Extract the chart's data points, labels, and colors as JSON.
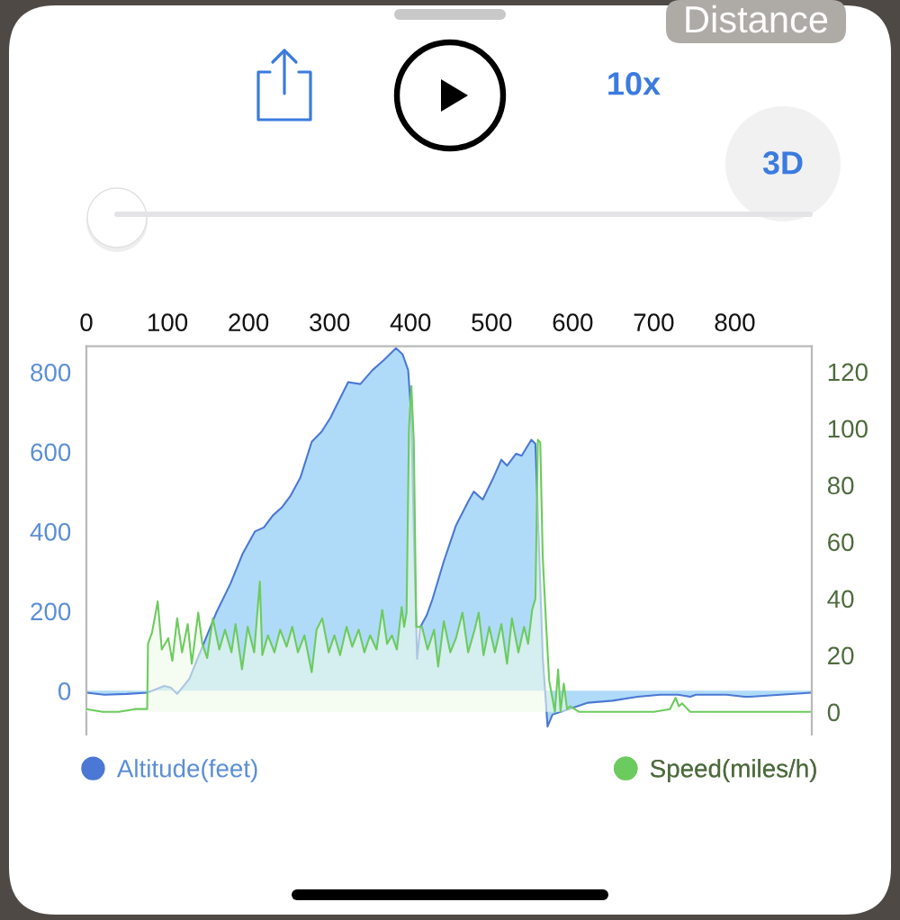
{
  "chart_data": {
    "type": "area",
    "annotations": [
      "Distance",
      "10x",
      "3D"
    ],
    "xlim": [
      0,
      895
    ],
    "xticks": [
      0,
      100,
      200,
      300,
      400,
      500,
      600,
      700,
      800
    ],
    "ylim": [
      -110,
      865
    ],
    "yticks": [
      0,
      200,
      400,
      600,
      800
    ],
    "y2lim": [
      -8,
      129
    ],
    "y2ticks": [
      0,
      20,
      40,
      60,
      80,
      100,
      120
    ],
    "legend": "bottom",
    "series": [
      {
        "name": "Altitude(feet)",
        "color": "#4a78d4",
        "x": [
          0,
          22,
          50,
          75,
          96,
          104,
          112,
          127,
          141,
          160,
          178,
          193,
          208,
          219,
          230,
          241,
          252,
          264,
          278,
          290,
          301,
          312,
          323,
          338,
          353,
          367,
          382,
          390,
          397,
          401,
          404,
          408,
          412,
          420,
          427,
          441,
          456,
          471,
          478,
          489,
          501,
          512,
          519,
          530,
          537,
          549,
          554,
          558,
          563,
          569,
          575,
          597,
          619,
          649,
          680,
          708,
          730,
          745,
          752,
          790,
          812,
          819,
          856,
          895
        ],
        "values": [
          -5,
          -10,
          -8,
          -5,
          12,
          8,
          -8,
          30,
          100,
          195,
          270,
          345,
          400,
          410,
          440,
          460,
          490,
          535,
          625,
          650,
          685,
          730,
          775,
          770,
          805,
          830,
          860,
          845,
          805,
          685,
          400,
          80,
          160,
          190,
          230,
          325,
          415,
          475,
          500,
          480,
          530,
          580,
          565,
          595,
          590,
          630,
          620,
          385,
          85,
          -90,
          -60,
          -45,
          -30,
          -25,
          -15,
          -10,
          -10,
          -15,
          -10,
          -10,
          -15,
          -15,
          -10,
          -5
        ]
      },
      {
        "name": "Speed(miles/h)",
        "color": "#6ccb5e",
        "axis": "y2",
        "x": [
          0,
          20,
          40,
          60,
          75,
          76,
          81,
          88,
          93,
          101,
          106,
          112,
          118,
          125,
          130,
          138,
          143,
          149,
          156,
          164,
          171,
          179,
          184,
          192,
          199,
          207,
          214,
          217,
          224,
          232,
          239,
          247,
          254,
          261,
          269,
          278,
          284,
          291,
          299,
          306,
          313,
          321,
          328,
          336,
          343,
          350,
          358,
          365,
          371,
          377,
          383,
          389,
          392,
          395,
          398,
          401,
          404,
          407,
          414,
          421,
          429,
          434,
          441,
          449,
          456,
          464,
          471,
          479,
          484,
          490,
          497,
          504,
          512,
          519,
          525,
          533,
          540,
          545,
          550,
          554,
          557,
          560,
          563,
          567,
          571,
          578,
          582,
          585,
          589,
          593,
          597,
          608,
          650,
          700,
          720,
          727,
          731,
          735,
          745,
          800,
          850,
          895
        ],
        "values": [
          1,
          0,
          0,
          1,
          1,
          24,
          28,
          39,
          22,
          26,
          18,
          33,
          21,
          31,
          17,
          35,
          24,
          19,
          33,
          22,
          29,
          21,
          31,
          15,
          30,
          21,
          46,
          20,
          27,
          21,
          29,
          23,
          30,
          21,
          27,
          14,
          29,
          33,
          21,
          27,
          20,
          30,
          23,
          29,
          21,
          27,
          22,
          36,
          24,
          27,
          22,
          37,
          30,
          35,
          100,
          115,
          95,
          30,
          30,
          22,
          29,
          16,
          32,
          21,
          26,
          35,
          21,
          29,
          35,
          20,
          30,
          21,
          31,
          17,
          33,
          21,
          30,
          24,
          36,
          40,
          96,
          95,
          55,
          32,
          11,
          0,
          15,
          0,
          10,
          1,
          2,
          0,
          0,
          0,
          1,
          5,
          2,
          3,
          0,
          0,
          0,
          0
        ]
      }
    ]
  }
}
